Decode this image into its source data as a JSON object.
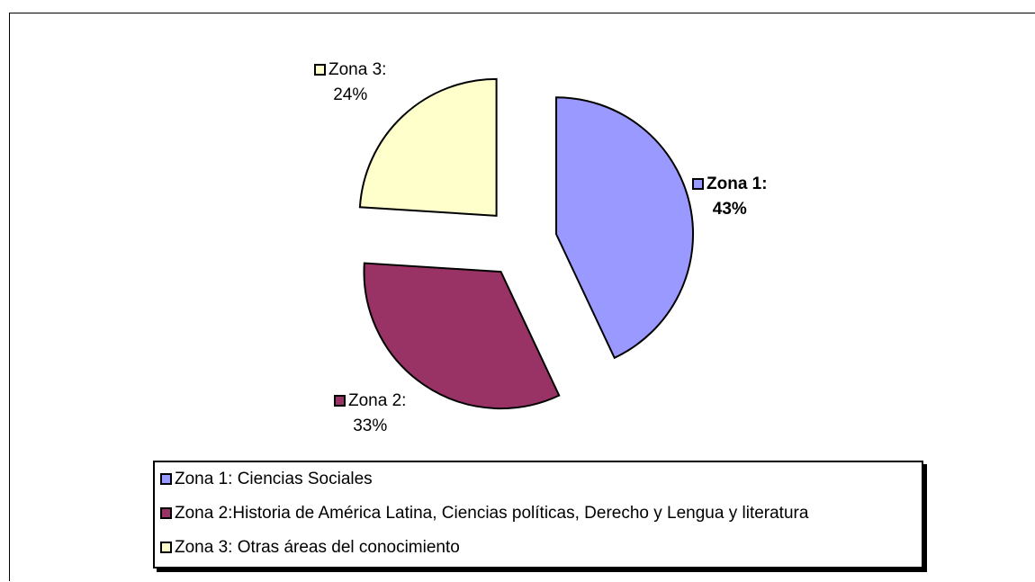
{
  "chart_data": {
    "type": "pie",
    "slices": [
      {
        "name": "Zona 1",
        "value": 43,
        "color": "#9999ff",
        "label_line1": "Zona 1:",
        "label_line2": "43%"
      },
      {
        "name": "Zona 2",
        "value": 33,
        "color": "#993366",
        "label_line1": "Zona 2:",
        "label_line2": "33%"
      },
      {
        "name": "Zona 3",
        "value": 24,
        "color": "#ffffcc",
        "label_line1": "Zona 3:",
        "label_line2": "24%"
      }
    ],
    "exploded": true,
    "legend_position": "bottom",
    "legend": [
      "Zona 1: Ciencias Sociales",
      "Zona 2:Historia de América Latina, Ciencias políticas, Derecho y Lengua y literatura",
      "Zona 3: Otras áreas del conocimiento"
    ]
  }
}
